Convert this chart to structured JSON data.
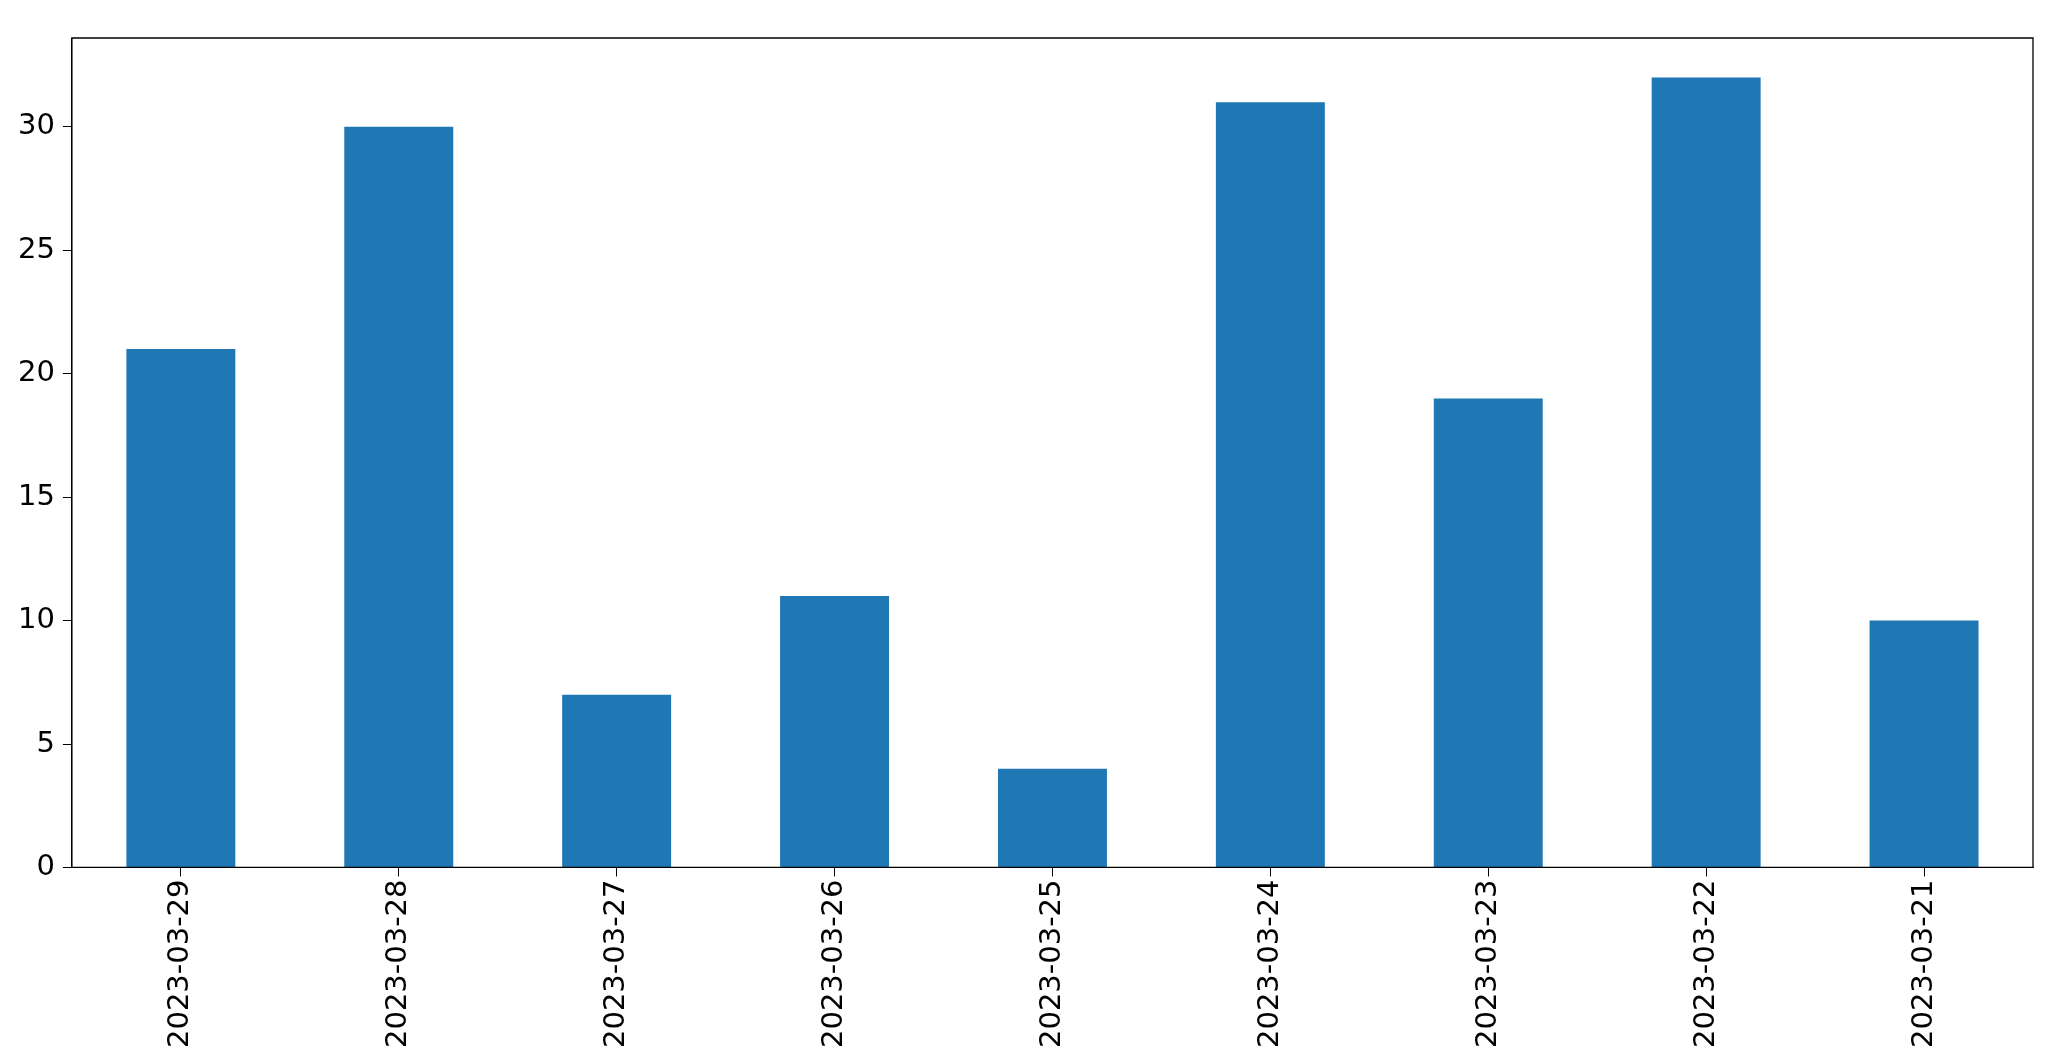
{
  "chart_data": {
    "type": "bar",
    "categories": [
      "2023-03-29",
      "2023-03-28",
      "2023-03-27",
      "2023-03-26",
      "2023-03-25",
      "2023-03-24",
      "2023-03-23",
      "2023-03-22",
      "2023-03-21"
    ],
    "values": [
      21,
      30,
      7,
      11,
      4,
      31,
      19,
      32,
      10
    ],
    "color": "#1f77b4",
    "ylim": [
      0,
      33.6
    ],
    "yticks": [
      0,
      5,
      10,
      15,
      20,
      25,
      30
    ],
    "grid": false,
    "legend": false
  }
}
